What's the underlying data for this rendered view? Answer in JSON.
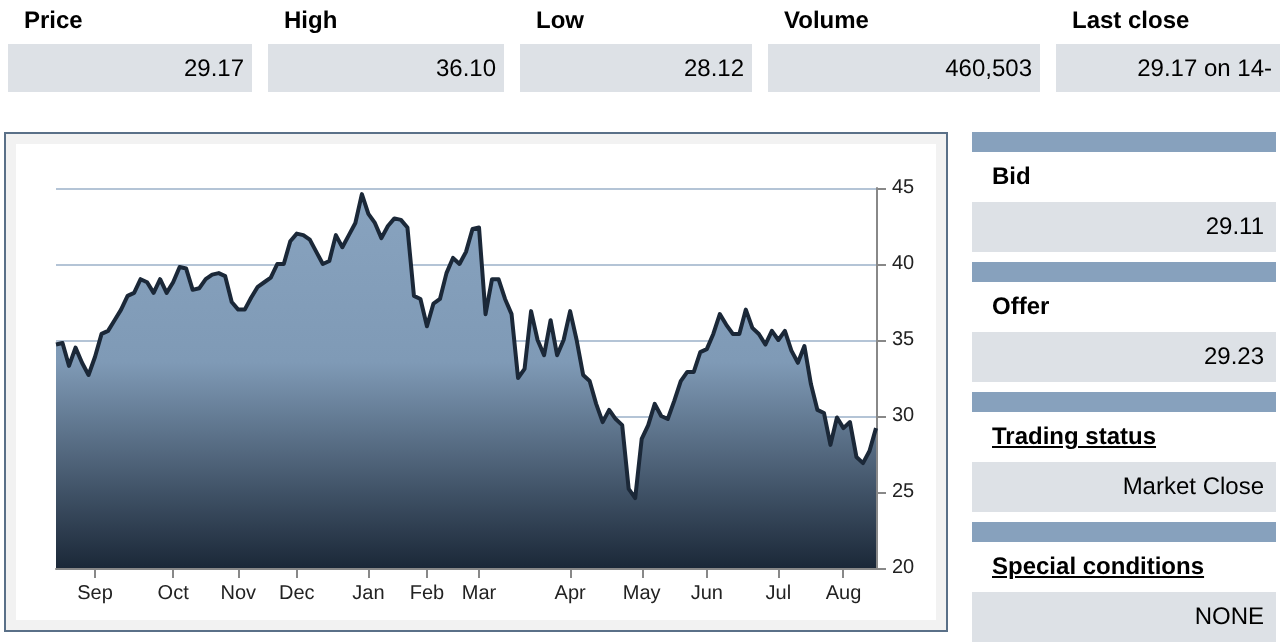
{
  "chart_data": [
    {
      "type": "other",
      "categories": [
        "Price",
        "High",
        "Low",
        "Volume",
        "Last close"
      ],
      "value_labels": [
        "29.17",
        "36.10",
        "28.12",
        "460,503",
        "29.17 on 14-"
      ]
    },
    {
      "type": "area",
      "categories": [
        null,
        null,
        null,
        null,
        null,
        null,
        "Sep",
        null,
        null,
        null,
        null,
        null,
        null,
        null,
        null,
        null,
        null,
        null,
        "Oct",
        null,
        null,
        null,
        null,
        null,
        null,
        null,
        null,
        null,
        "Nov",
        null,
        null,
        null,
        null,
        null,
        null,
        null,
        null,
        "Dec",
        null,
        null,
        null,
        null,
        null,
        null,
        null,
        null,
        null,
        null,
        "Jan",
        null,
        null,
        null,
        null,
        null,
        null,
        null,
        null,
        "Feb",
        null,
        null,
        null,
        null,
        null,
        null,
        null,
        "Mar",
        null,
        null,
        null,
        null,
        null,
        null,
        null,
        null,
        null,
        null,
        null,
        null,
        null,
        "Apr",
        null,
        null,
        null,
        null,
        null,
        null,
        null,
        null,
        null,
        null,
        "May",
        null,
        null,
        null,
        null,
        null,
        null,
        null,
        null,
        null,
        "Jun",
        null,
        null,
        null,
        null,
        null,
        null,
        null,
        null,
        null,
        null,
        "Jul",
        null,
        null,
        null,
        null,
        null,
        null,
        null,
        null,
        null,
        "Aug",
        null,
        null,
        null,
        null,
        null
      ],
      "series": [
        {
          "color": "#1b2838",
          "values": [
            34.7,
            34.8,
            33.3,
            34.5,
            33.5,
            32.7,
            33.9,
            35.4,
            35.6,
            36.3,
            37,
            37.9,
            38.1,
            39,
            38.8,
            38.1,
            39,
            38.1,
            38.8,
            39.8,
            39.7,
            38.3,
            38.4,
            39,
            39.3,
            39.4,
            39.2,
            37.5,
            37,
            37,
            37.8,
            38.5,
            38.8,
            39.1,
            40,
            40,
            41.5,
            42,
            41.9,
            41.6,
            40.8,
            40,
            40.2,
            41.9,
            41.1,
            41.9,
            42.7,
            44.6,
            43.3,
            42.7,
            41.7,
            42.5,
            43,
            42.9,
            42.4,
            37.9,
            37.7,
            35.9,
            37.4,
            37.7,
            39.4,
            40.4,
            40,
            40.8,
            42.3,
            42.4,
            36.7,
            39,
            39,
            37.7,
            36.7,
            32.5,
            33.1,
            36.9,
            35,
            34,
            36.3,
            34,
            35,
            36.9,
            35,
            32.7,
            32.3,
            30.8,
            29.6,
            30.4,
            29.8,
            29.4,
            25.2,
            24.6,
            28.5,
            29.4,
            30.8,
            30,
            29.8,
            31,
            32.3,
            32.9,
            32.9,
            34.2,
            34.4,
            35.4,
            36.7,
            36,
            35.4,
            35.4,
            37,
            35.8,
            35.4,
            34.7,
            35.6,
            35,
            35.6,
            34.3,
            33.5,
            34.6,
            32.1,
            30.4,
            30.2,
            28.1,
            29.9,
            29.2,
            29.6,
            27.3,
            26.9,
            27.7,
            29.2
          ]
        }
      ],
      "ylim": [
        20,
        45
      ],
      "yticks": [
        20,
        25,
        30,
        35,
        40,
        45
      ],
      "grid": "y"
    },
    {
      "type": "other",
      "categories": [
        "Bid",
        "Offer",
        "Trading status",
        "Special conditions"
      ],
      "value_labels": [
        "29.11",
        "29.23",
        "Market Close",
        "NONE"
      ]
    }
  ]
}
